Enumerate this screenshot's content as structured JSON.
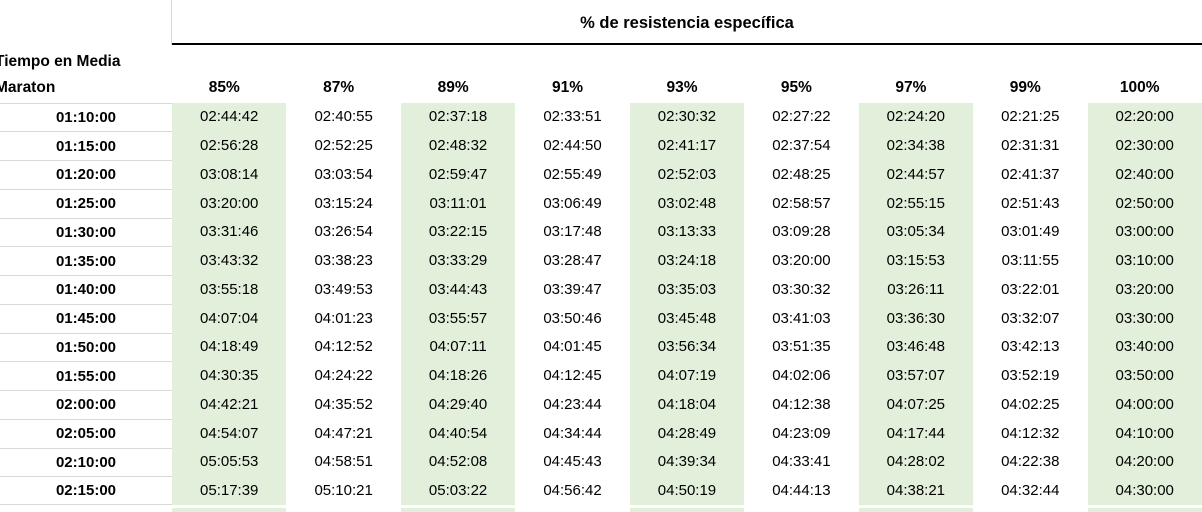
{
  "table": {
    "title": "% de resistencia específica",
    "row_header_line1": "Tiempo en Media",
    "row_header_line2": "Maraton",
    "columns": [
      "85%",
      "87%",
      "89%",
      "91%",
      "93%",
      "95%",
      "97%",
      "99%",
      "100%"
    ],
    "highlighted_column_indexes": [
      0,
      2,
      4,
      6,
      8
    ],
    "rows": [
      {
        "label": "01:10:00",
        "values": [
          "02:44:42",
          "02:40:55",
          "02:37:18",
          "02:33:51",
          "02:30:32",
          "02:27:22",
          "02:24:20",
          "02:21:25",
          "02:20:00"
        ]
      },
      {
        "label": "01:15:00",
        "values": [
          "02:56:28",
          "02:52:25",
          "02:48:32",
          "02:44:50",
          "02:41:17",
          "02:37:54",
          "02:34:38",
          "02:31:31",
          "02:30:00"
        ]
      },
      {
        "label": "01:20:00",
        "values": [
          "03:08:14",
          "03:03:54",
          "02:59:47",
          "02:55:49",
          "02:52:03",
          "02:48:25",
          "02:44:57",
          "02:41:37",
          "02:40:00"
        ]
      },
      {
        "label": "01:25:00",
        "values": [
          "03:20:00",
          "03:15:24",
          "03:11:01",
          "03:06:49",
          "03:02:48",
          "02:58:57",
          "02:55:15",
          "02:51:43",
          "02:50:00"
        ]
      },
      {
        "label": "01:30:00",
        "values": [
          "03:31:46",
          "03:26:54",
          "03:22:15",
          "03:17:48",
          "03:13:33",
          "03:09:28",
          "03:05:34",
          "03:01:49",
          "03:00:00"
        ]
      },
      {
        "label": "01:35:00",
        "values": [
          "03:43:32",
          "03:38:23",
          "03:33:29",
          "03:28:47",
          "03:24:18",
          "03:20:00",
          "03:15:53",
          "03:11:55",
          "03:10:00"
        ]
      },
      {
        "label": "01:40:00",
        "values": [
          "03:55:18",
          "03:49:53",
          "03:44:43",
          "03:39:47",
          "03:35:03",
          "03:30:32",
          "03:26:11",
          "03:22:01",
          "03:20:00"
        ]
      },
      {
        "label": "01:45:00",
        "values": [
          "04:07:04",
          "04:01:23",
          "03:55:57",
          "03:50:46",
          "03:45:48",
          "03:41:03",
          "03:36:30",
          "03:32:07",
          "03:30:00"
        ]
      },
      {
        "label": "01:50:00",
        "values": [
          "04:18:49",
          "04:12:52",
          "04:07:11",
          "04:01:45",
          "03:56:34",
          "03:51:35",
          "03:46:48",
          "03:42:13",
          "03:40:00"
        ]
      },
      {
        "label": "01:55:00",
        "values": [
          "04:30:35",
          "04:24:22",
          "04:18:26",
          "04:12:45",
          "04:07:19",
          "04:02:06",
          "03:57:07",
          "03:52:19",
          "03:50:00"
        ]
      },
      {
        "label": "02:00:00",
        "values": [
          "04:42:21",
          "04:35:52",
          "04:29:40",
          "04:23:44",
          "04:18:04",
          "04:12:38",
          "04:07:25",
          "04:02:25",
          "04:00:00"
        ]
      },
      {
        "label": "02:05:00",
        "values": [
          "04:54:07",
          "04:47:21",
          "04:40:54",
          "04:34:44",
          "04:28:49",
          "04:23:09",
          "04:17:44",
          "04:12:32",
          "04:10:00"
        ]
      },
      {
        "label": "02:10:00",
        "values": [
          "05:05:53",
          "04:58:51",
          "04:52:08",
          "04:45:43",
          "04:39:34",
          "04:33:41",
          "04:28:02",
          "04:22:38",
          "04:20:00"
        ]
      },
      {
        "label": "02:15:00",
        "values": [
          "05:17:39",
          "05:10:21",
          "05:03:22",
          "04:56:42",
          "04:50:19",
          "04:44:13",
          "04:38:21",
          "04:32:44",
          "04:30:00"
        ]
      }
    ],
    "colors": {
      "highlight": "#E2EFDA",
      "gridline": "#D9D9D9",
      "header_border": "#000000",
      "text": "#000000"
    }
  }
}
